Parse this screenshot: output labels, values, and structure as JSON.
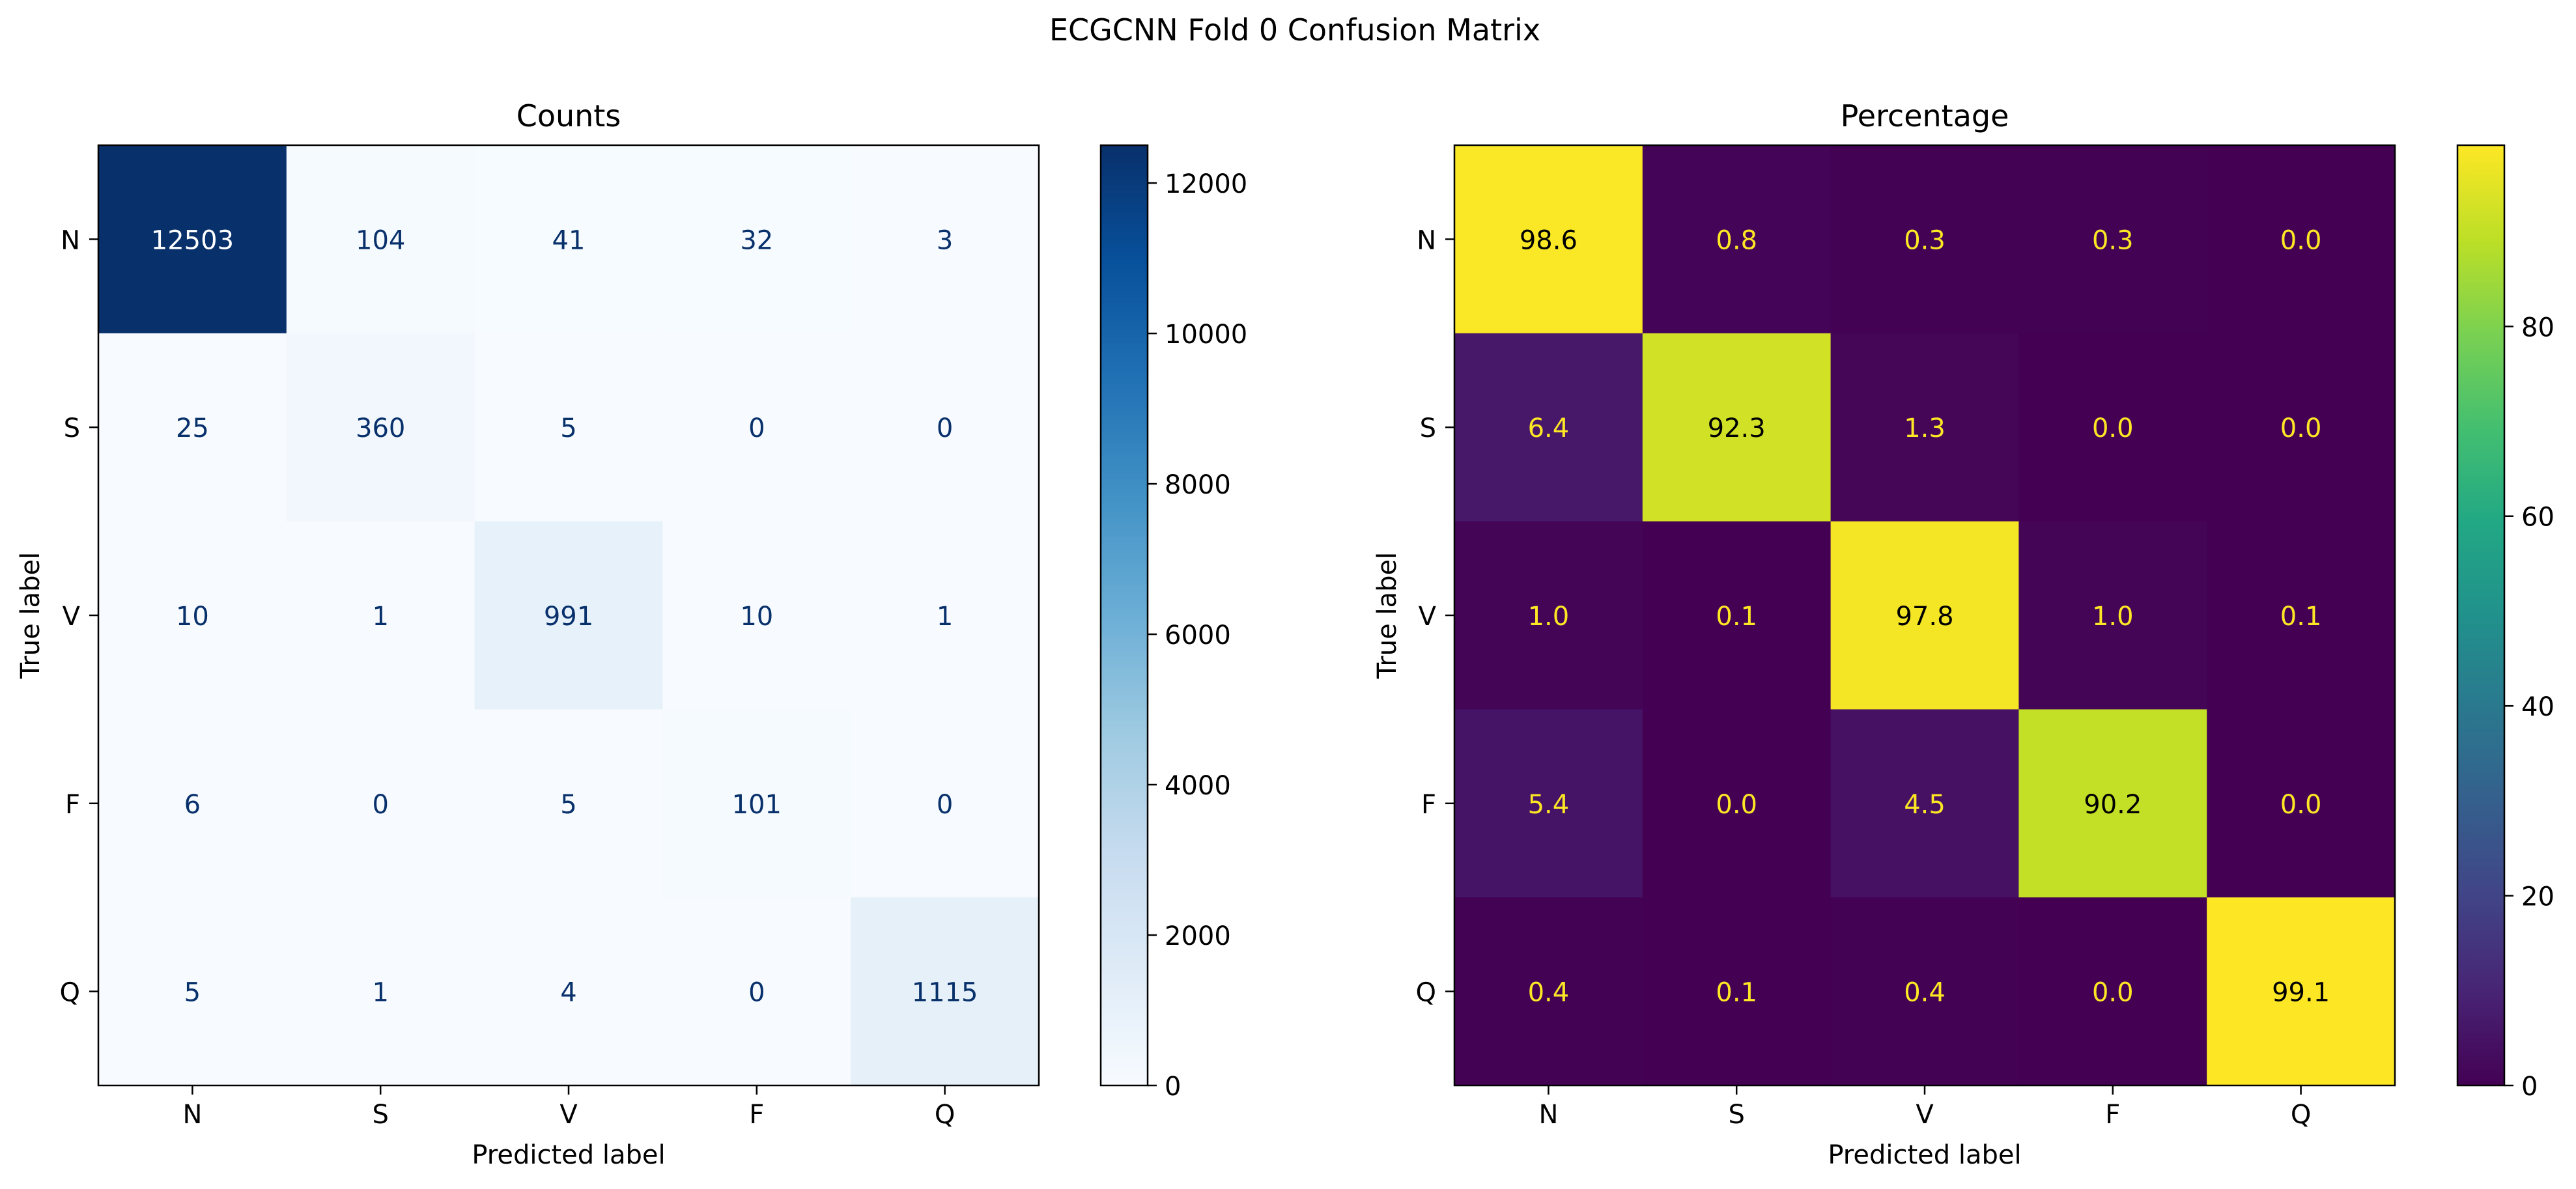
{
  "suptitle": "ECGCNN Fold 0 Confusion Matrix",
  "chart_data": [
    {
      "type": "heatmap",
      "title": "Counts",
      "xlabel": "Predicted label",
      "ylabel": "True label",
      "x": [
        "N",
        "S",
        "V",
        "F",
        "Q"
      ],
      "y": [
        "N",
        "S",
        "V",
        "F",
        "Q"
      ],
      "values": [
        [
          12503,
          104,
          41,
          32,
          3
        ],
        [
          25,
          360,
          5,
          0,
          0
        ],
        [
          10,
          1,
          991,
          10,
          1
        ],
        [
          6,
          0,
          5,
          101,
          0
        ],
        [
          5,
          1,
          4,
          0,
          1115
        ]
      ],
      "value_format": "integer",
      "colormap": "Blues",
      "color_range": [
        0,
        12503
      ],
      "colorbar_ticks": [
        0,
        2000,
        4000,
        6000,
        8000,
        10000,
        12000
      ],
      "colorbar_tick_labels": [
        "0",
        "2000",
        "4000",
        "6000",
        "8000",
        "10000",
        "12000"
      ]
    },
    {
      "type": "heatmap",
      "title": "Percentage",
      "xlabel": "Predicted label",
      "ylabel": "True label",
      "x": [
        "N",
        "S",
        "V",
        "F",
        "Q"
      ],
      "y": [
        "N",
        "S",
        "V",
        "F",
        "Q"
      ],
      "values": [
        [
          98.6,
          0.8,
          0.3,
          0.3,
          0.0
        ],
        [
          6.4,
          92.3,
          1.3,
          0.0,
          0.0
        ],
        [
          1.0,
          0.1,
          97.8,
          1.0,
          0.1
        ],
        [
          5.4,
          0.0,
          4.5,
          90.2,
          0.0
        ],
        [
          0.4,
          0.1,
          0.4,
          0.0,
          99.1
        ]
      ],
      "value_format": "one-decimal",
      "colormap": "viridis",
      "color_range": [
        0,
        99.1
      ],
      "colorbar_ticks": [
        0,
        20,
        40,
        60,
        80
      ],
      "colorbar_tick_labels": [
        "0",
        "20",
        "40",
        "60",
        "80"
      ]
    }
  ]
}
